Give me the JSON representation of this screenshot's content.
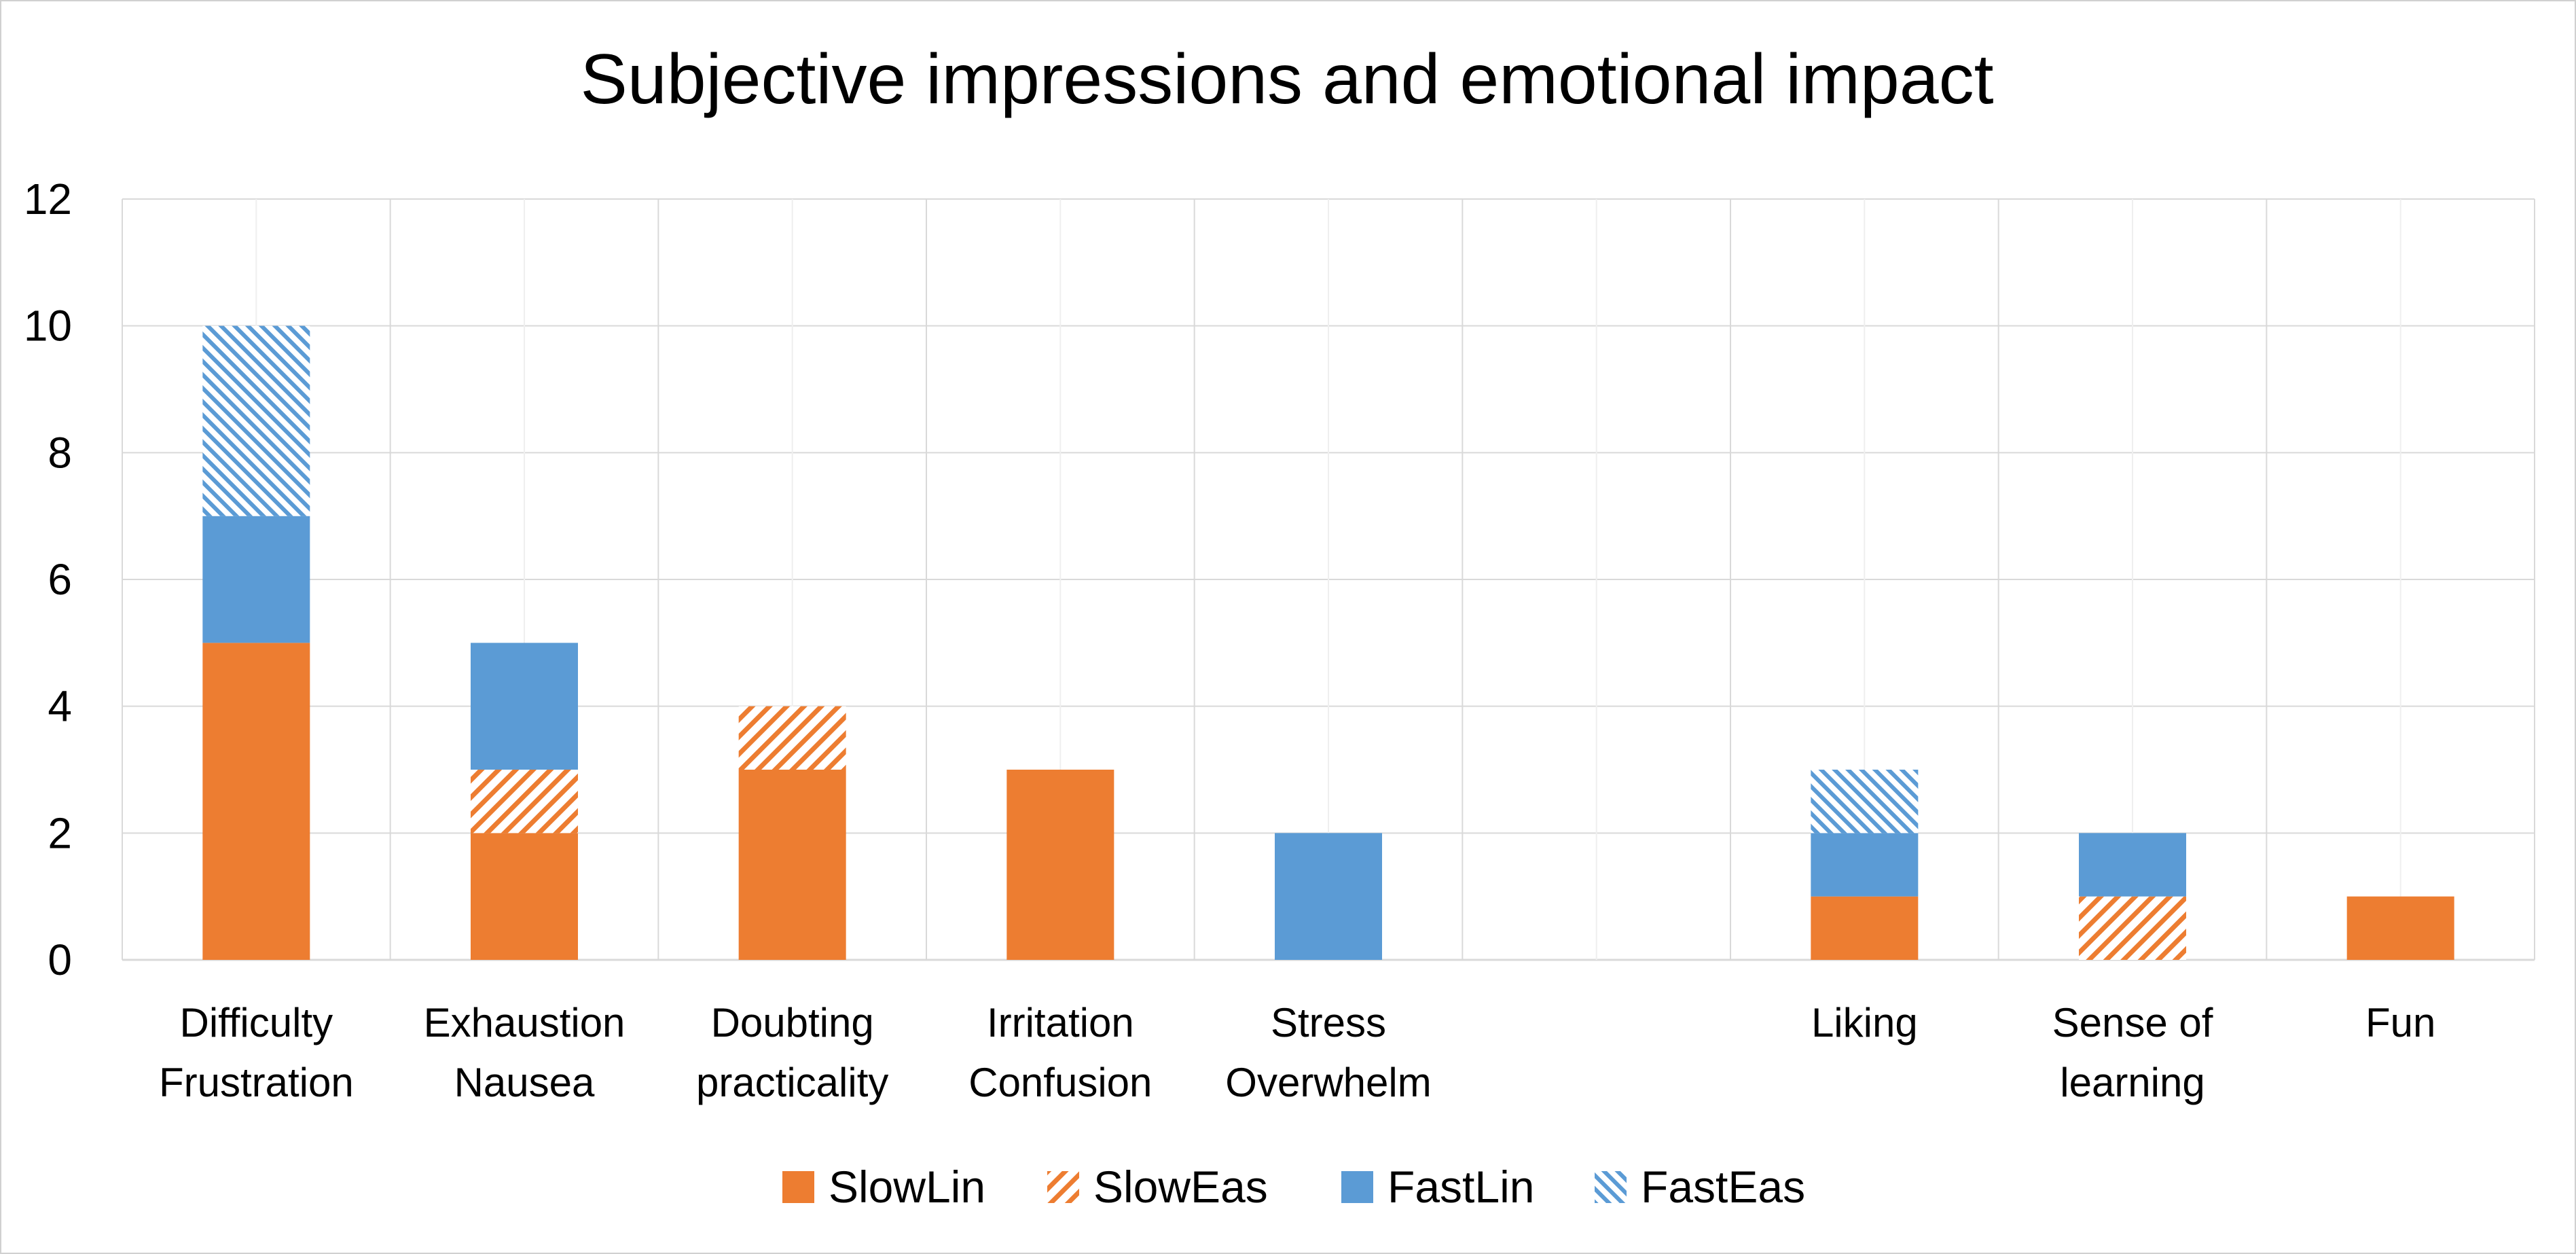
{
  "chart_data": {
    "type": "bar",
    "stacked": true,
    "title": "Subjective impressions and emotional impact",
    "xlabel": "",
    "ylabel": "",
    "ylim": [
      0,
      12
    ],
    "yticks": [
      "0",
      "2",
      "4",
      "6",
      "8",
      "10",
      "12"
    ],
    "grid": true,
    "legend_position": "bottom",
    "categories": [
      [
        "Difficulty",
        "Frustration"
      ],
      [
        "Exhaustion",
        "Nausea"
      ],
      [
        "Doubting",
        "practicality"
      ],
      [
        "Irritation",
        "Confusion"
      ],
      [
        "Stress",
        "Overwhelm"
      ],
      [
        "",
        ""
      ],
      [
        "Liking",
        ""
      ],
      [
        "Sense of",
        "learning"
      ],
      [
        "Fun",
        ""
      ]
    ],
    "series": [
      {
        "name": "SlowLin",
        "pattern": "solid",
        "color": "#ED7D31",
        "values": [
          5,
          2,
          3,
          3,
          0,
          0,
          1,
          0,
          1
        ]
      },
      {
        "name": "SlowEas",
        "pattern": "hatched",
        "color": "#ED7D31",
        "values": [
          0,
          1,
          1,
          0,
          0,
          0,
          0,
          1,
          0
        ]
      },
      {
        "name": "FastLin",
        "pattern": "solid",
        "color": "#5B9BD5",
        "values": [
          2,
          2,
          0,
          0,
          2,
          0,
          1,
          1,
          0
        ]
      },
      {
        "name": "FastEas",
        "pattern": "hatched",
        "color": "#5B9BD5",
        "values": [
          3,
          0,
          0,
          0,
          0,
          0,
          1,
          0,
          0
        ]
      }
    ]
  },
  "colors": {
    "grid": "#d9d9d9",
    "axis": "#d9d9d9",
    "text": "#000000"
  }
}
